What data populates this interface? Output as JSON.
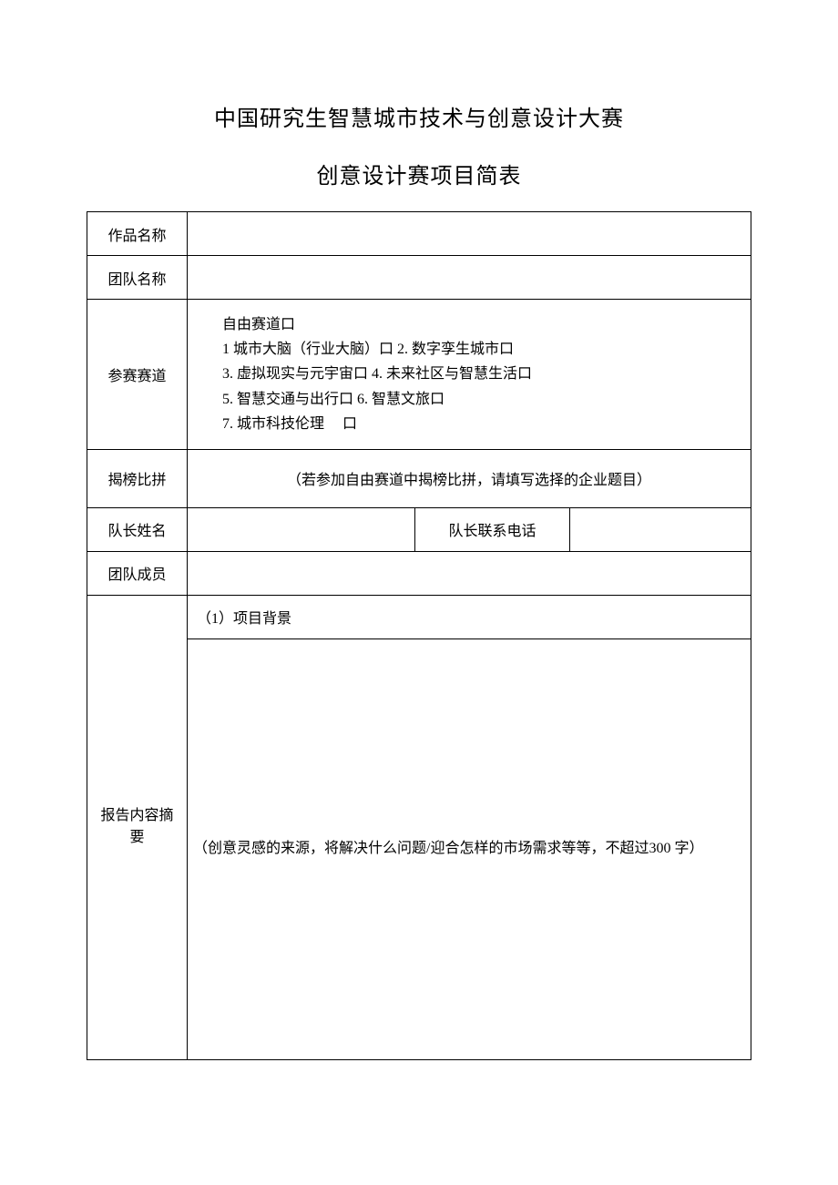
{
  "header": {
    "title1": "中国研究生智慧城市技术与创意设计大赛",
    "title2": "创意设计赛项目简表"
  },
  "labels": {
    "work_name": "作品名称",
    "team_name": "团队名称",
    "track": "参赛赛道",
    "challenge": "揭榜比拼",
    "leader_name": "队长姓名",
    "leader_phone": "队长联系电话",
    "members": "团队成员",
    "summary": "报告内容摘\n要",
    "bg_header": "（1）项目背景"
  },
  "track_options": {
    "free": "自由赛道口",
    "opt1": "1 城市大脑（行业大脑）口 2. 数字孪生城市口",
    "opt2": "3. 虚拟现实与元宇宙口 4. 未来社区与智慧生活口",
    "opt3": "5. 智慧交通与出行口 6. 智慧文旅口",
    "opt4": "7. 城市科技伦理　 口"
  },
  "challenge_hint": "（若参加自由赛道中揭榜比拼，请填写选择的企业题目）",
  "bg_hint": "（创意灵感的来源，将解决什么问题/迎合怎样的市场需求等等，不超过300 字）",
  "values": {
    "work_name": "",
    "team_name": "",
    "leader_name": "",
    "leader_phone": "",
    "members": ""
  }
}
